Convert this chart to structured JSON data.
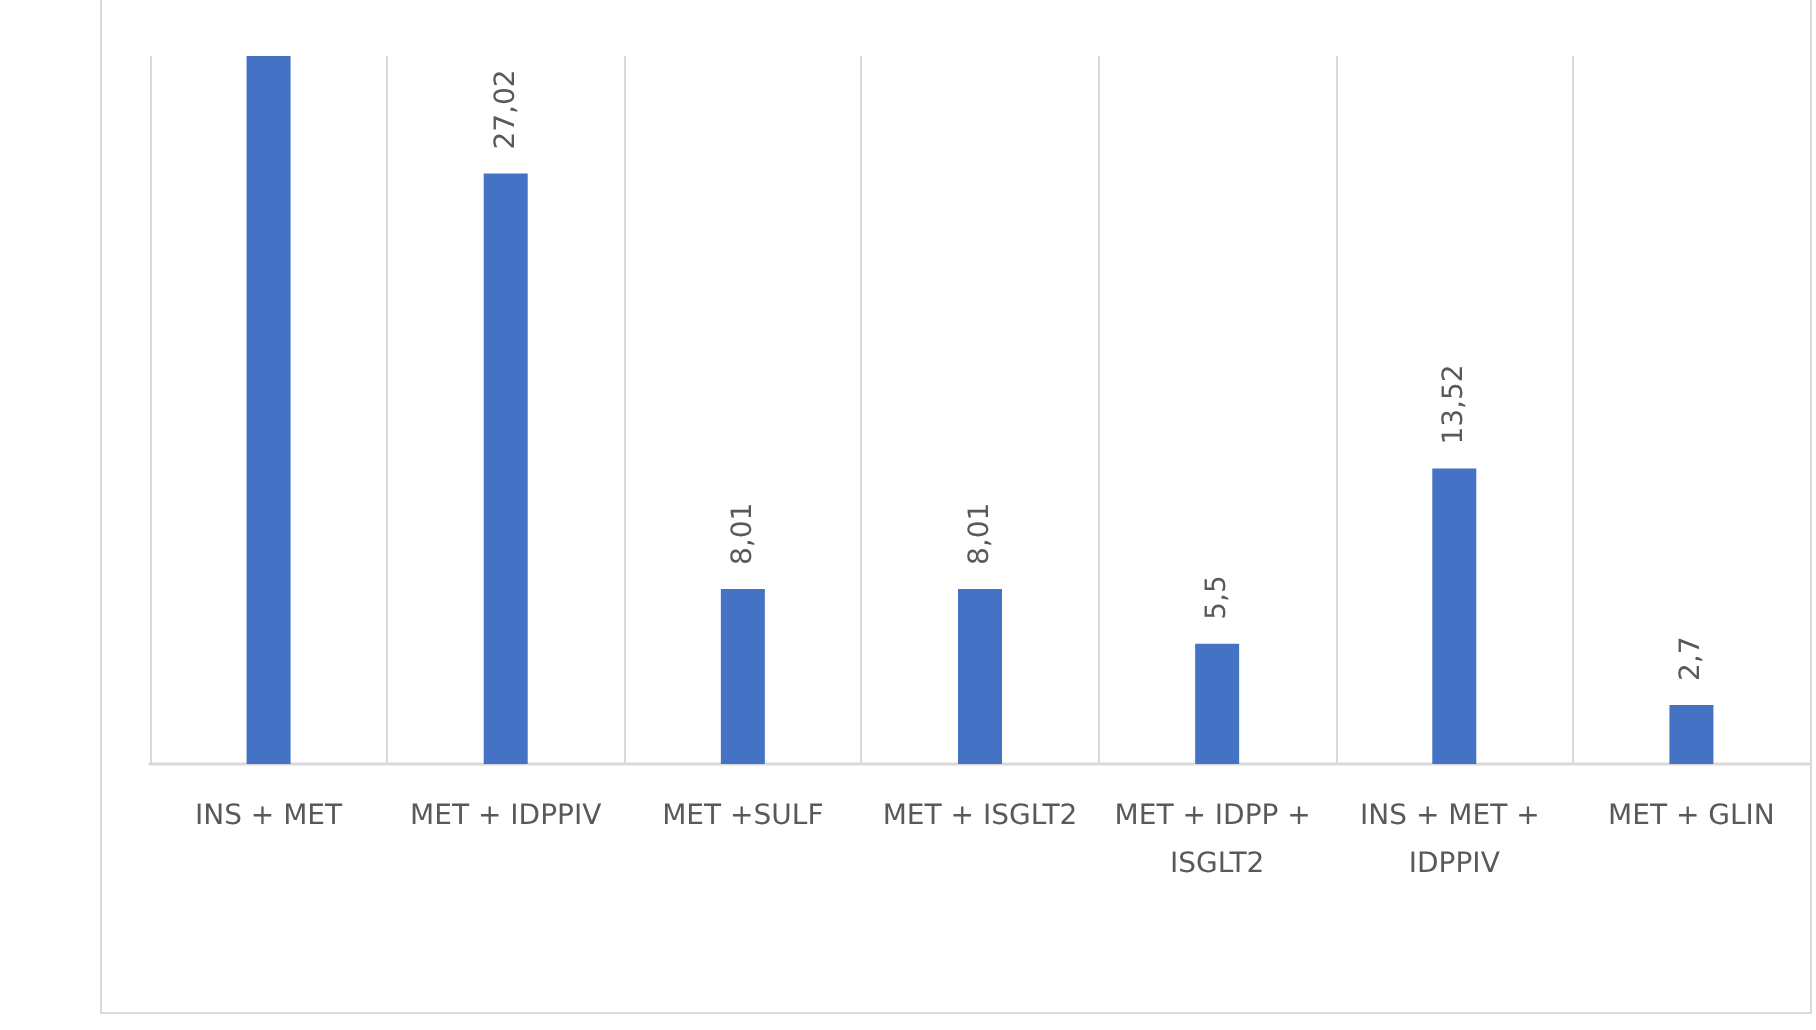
{
  "chart_data": {
    "type": "bar",
    "categories": [
      "INS + MET",
      "MET + IDPPIV",
      "MET +SULF",
      "MET + ISGLT2",
      "MET + IDPP + ISGLT2",
      "INS + MET + IDPPIV",
      "MET + GLIN"
    ],
    "values": [
      32.4,
      27.02,
      8.01,
      8.01,
      5.5,
      13.52,
      2.7
    ],
    "value_labels": [
      null,
      "27,02",
      "8,01",
      "8,01",
      "5,5",
      "13,52",
      "2,7"
    ],
    "color": "#4472c4",
    "grid": "x",
    "legend": false
  }
}
